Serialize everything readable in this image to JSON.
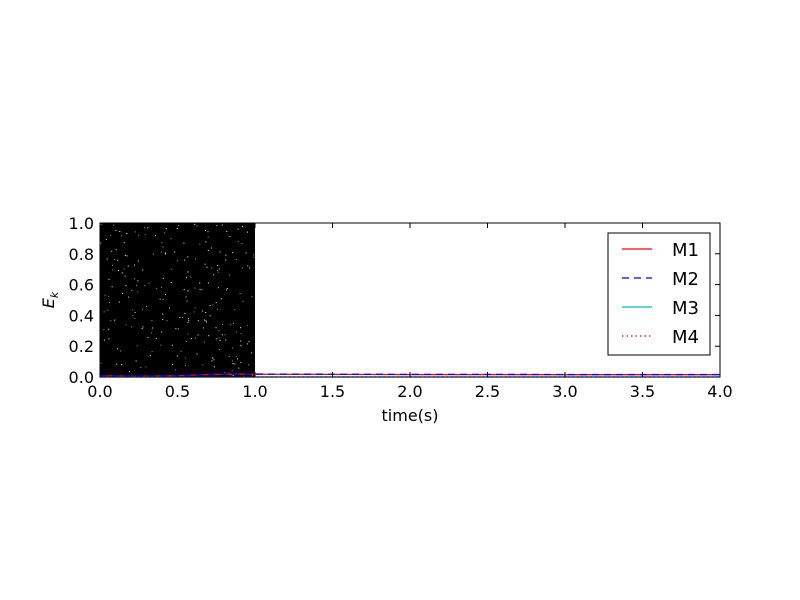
{
  "chart_data": {
    "type": "line",
    "xlabel": "time(s)",
    "ylabel": "E",
    "ylabel_subscript": "k",
    "xlim": [
      0.0,
      4.0
    ],
    "ylim": [
      0.0,
      1.0
    ],
    "xticks": [
      "0.0",
      "0.5",
      "1.0",
      "1.5",
      "2.0",
      "2.5",
      "3.0",
      "3.5",
      "4.0"
    ],
    "yticks": [
      "0.0",
      "0.2",
      "0.4",
      "0.6",
      "0.8",
      "1.0"
    ],
    "grid": false,
    "legend_position": "top-right",
    "noise_region": {
      "x_start": 0.0,
      "x_end": 1.0,
      "color": "#000000"
    },
    "series": [
      {
        "name": "M1",
        "color": "#ff0000",
        "style": "solid",
        "x": [
          0.0,
          0.2,
          0.4,
          0.5,
          0.6,
          0.7,
          0.8,
          0.9,
          1.0,
          1.5,
          2.0,
          2.5,
          3.0,
          3.5,
          4.0
        ],
        "y": [
          0.008,
          0.005,
          0.006,
          0.008,
          0.012,
          0.016,
          0.018,
          0.019,
          0.018,
          0.017,
          0.016,
          0.016,
          0.015,
          0.015,
          0.015
        ]
      },
      {
        "name": "M2",
        "color": "#0000ff",
        "style": "dashed",
        "x": [
          0.0,
          0.2,
          0.4,
          0.5,
          0.6,
          0.7,
          0.8,
          0.9,
          1.0,
          1.5,
          2.0,
          2.5,
          3.0,
          3.5,
          4.0
        ],
        "y": [
          0.009,
          0.006,
          0.007,
          0.009,
          0.013,
          0.017,
          0.019,
          0.02,
          0.019,
          0.018,
          0.017,
          0.017,
          0.016,
          0.016,
          0.016
        ]
      },
      {
        "name": "M3",
        "color": "#00bfbf",
        "style": "solid",
        "x": [
          0.0,
          1.0,
          2.0,
          3.0,
          4.0
        ],
        "y": [
          0.0,
          0.0,
          0.0,
          0.0,
          0.0
        ]
      },
      {
        "name": "M4",
        "color": "#bf00bf",
        "style": "dotted",
        "x": [
          0.0,
          1.0,
          2.0,
          3.0,
          4.0
        ],
        "y": [
          0.0,
          0.0,
          0.0,
          0.0,
          0.0
        ]
      }
    ]
  }
}
